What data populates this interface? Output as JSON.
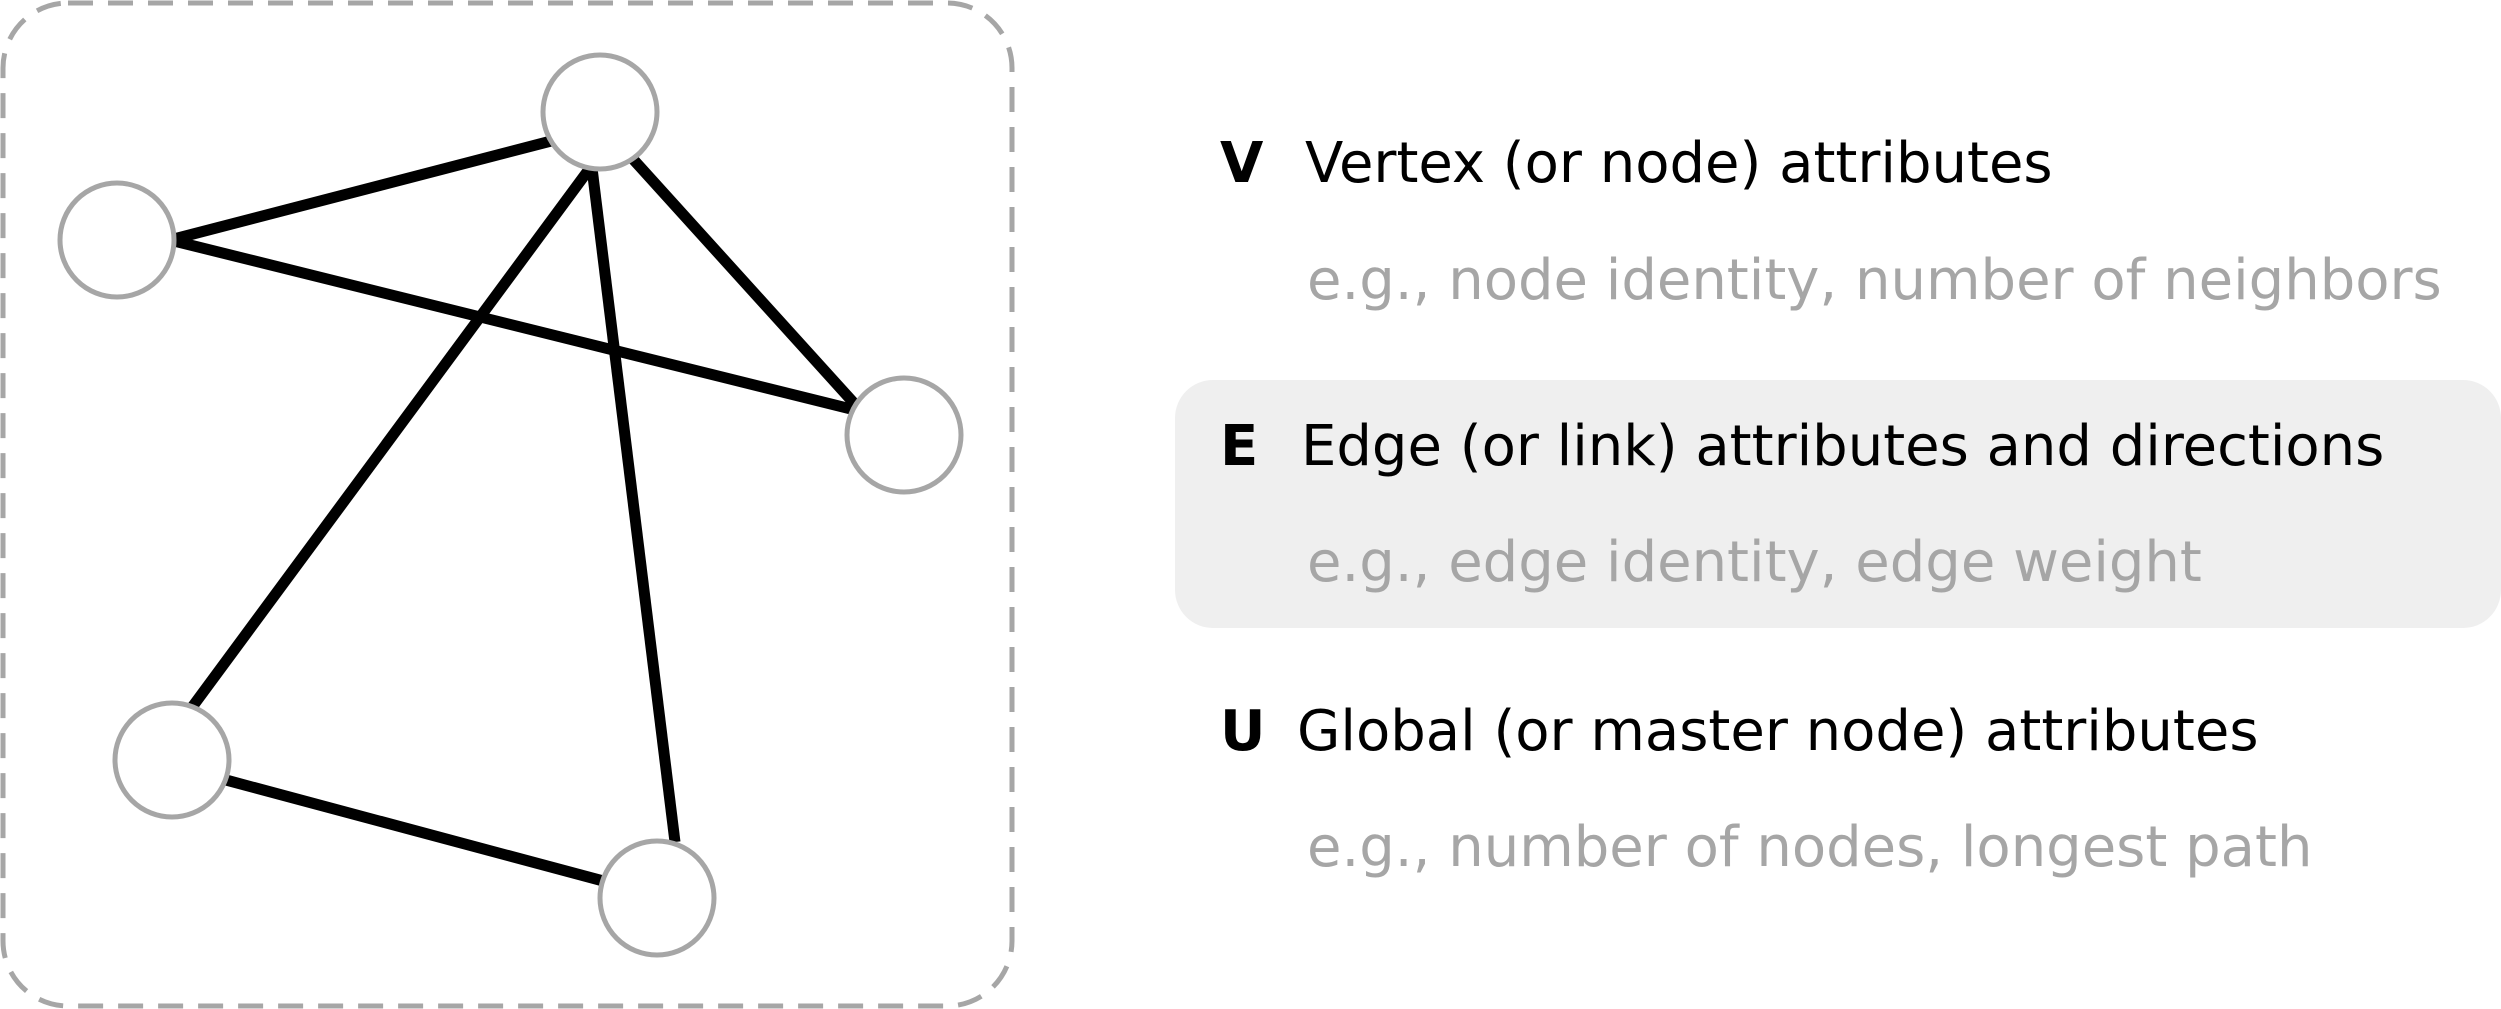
{
  "graph": {
    "nodes": [
      {
        "id": "n1"
      },
      {
        "id": "n2"
      },
      {
        "id": "n3"
      },
      {
        "id": "n4"
      },
      {
        "id": "n5"
      }
    ],
    "edges": [
      [
        "n1",
        "n2"
      ],
      [
        "n1",
        "n4"
      ],
      [
        "n2",
        "n4"
      ],
      [
        "n2",
        "n3"
      ],
      [
        "n2",
        "n5"
      ],
      [
        "n3",
        "n5"
      ]
    ],
    "colors": {
      "edge": "#000000",
      "node_outline": "#a6a6a6",
      "node_fill": "#ffffff",
      "frame": "#a6a6a6"
    }
  },
  "legend": [
    {
      "key": "V",
      "title": "Vertex (or node) attributes",
      "example": "e.g., node identity, number of neighbors",
      "highlighted": false
    },
    {
      "key": "E",
      "title": "Edge (or link) attributes and directions",
      "example": "e.g., edge identity, edge weight",
      "highlighted": true
    },
    {
      "key": "U",
      "title": "Global (or master node) attributes",
      "example": "e.g., number of nodes, longest path",
      "highlighted": false
    }
  ],
  "colors": {
    "highlight_background": "#efefef",
    "example_text": "#a6a6a6",
    "main_text": "#000000"
  }
}
